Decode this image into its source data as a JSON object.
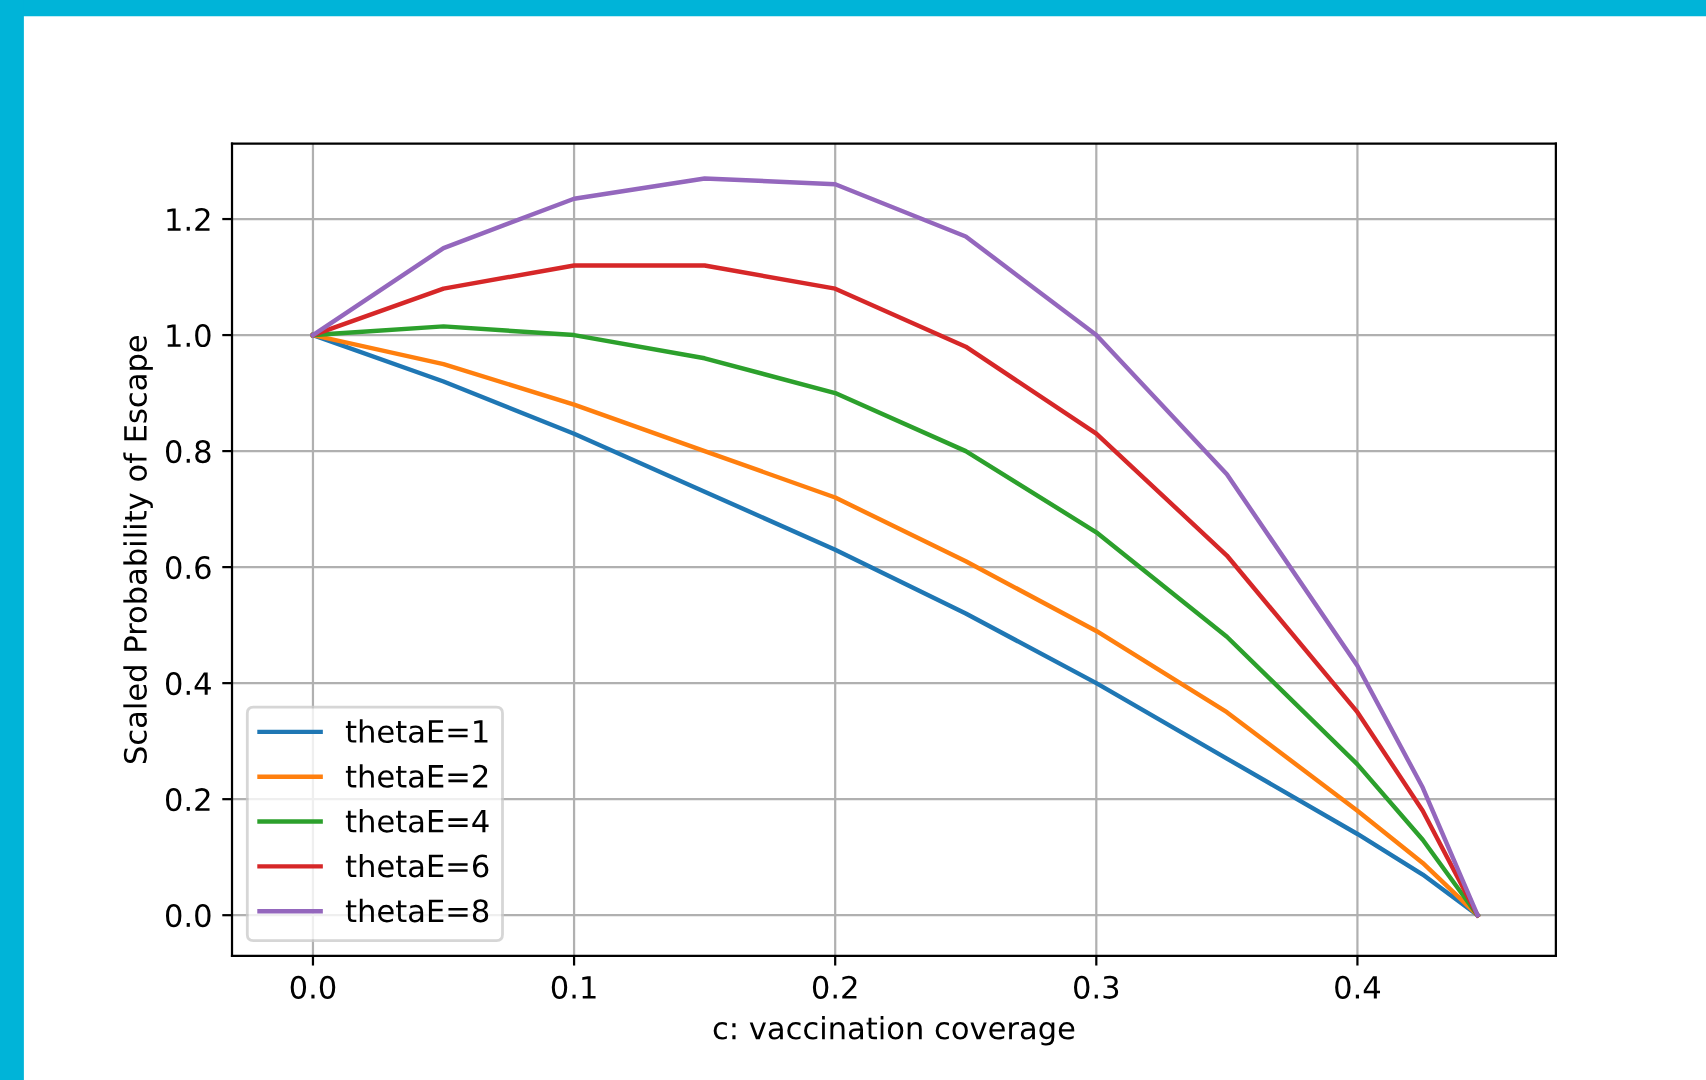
{
  "chart_data": {
    "type": "line",
    "xlabel": "c: vaccination coverage",
    "ylabel": "Scaled Probability of Escape",
    "x": [
      0,
      0.05,
      0.1,
      0.15,
      0.2,
      0.25,
      0.3,
      0.35,
      0.4,
      0.425,
      0.446
    ],
    "series": [
      {
        "name": "thetaE=1",
        "color": "#1f77b4",
        "values": [
          1,
          0.92,
          0.83,
          0.73,
          0.63,
          0.52,
          0.4,
          0.27,
          0.14,
          0.07,
          0
        ]
      },
      {
        "name": "thetaE=2",
        "color": "#ff7f0e",
        "values": [
          1,
          0.95,
          0.88,
          0.8,
          0.72,
          0.61,
          0.49,
          0.35,
          0.18,
          0.09,
          0
        ]
      },
      {
        "name": "thetaE=4",
        "color": "#2ca02c",
        "values": [
          1,
          1.015,
          1.0,
          0.96,
          0.9,
          0.8,
          0.66,
          0.48,
          0.26,
          0.13,
          0
        ]
      },
      {
        "name": "thetaE=6",
        "color": "#d62728",
        "values": [
          1,
          1.08,
          1.12,
          1.12,
          1.08,
          0.98,
          0.83,
          0.62,
          0.35,
          0.18,
          0
        ]
      },
      {
        "name": "thetaE=8",
        "color": "#9467bd",
        "values": [
          1,
          1.15,
          1.235,
          1.27,
          1.26,
          1.17,
          1.0,
          0.76,
          0.43,
          0.22,
          0
        ]
      }
    ],
    "xlim": [
      -0.031,
      0.476
    ],
    "ylim": [
      -0.07,
      1.33
    ],
    "xticks": [
      {
        "value": 0,
        "label": "0.0"
      },
      0.1,
      0.2,
      0.3,
      0.4
    ],
    "yticks": [
      {
        "value": 0,
        "label": "0.0"
      },
      0.2,
      0.4,
      0.6,
      0.8,
      {
        "value": 1,
        "label": "1.0"
      },
      1.2
    ],
    "grid": true,
    "legend": "bottom left",
    "marker": "none",
    "line_style": "solid"
  }
}
